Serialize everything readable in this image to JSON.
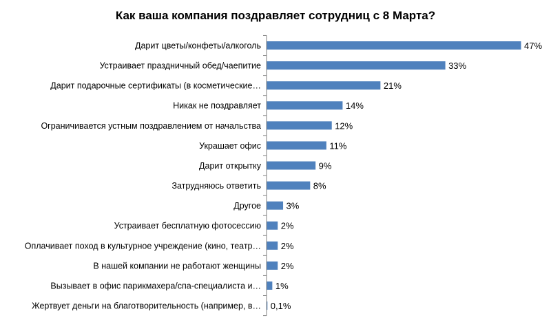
{
  "chart_data": {
    "type": "bar",
    "orientation": "horizontal",
    "title": "Как ваша компания поздравляет сотрудниц  с 8 Марта?",
    "xlabel": "",
    "ylabel": "",
    "xlim": [
      0,
      47
    ],
    "grid": false,
    "legend": "none",
    "colors": {
      "bar": "#4f81bd",
      "axis": "#7f7f7f",
      "text": "#000000"
    },
    "categories": [
      "Дарит цветы/конфеты/алкоголь",
      "Устраивает праздничный обед/чаепитие",
      "Дарит подарочные сертификаты (в косметические…",
      "Никак не поздравляет",
      "Ограничивается устным поздравлением от начальства",
      "Украшает офис",
      "Дарит открытку",
      "Затрудняюсь ответить",
      "Другое",
      "Устраивает бесплатную фотосессию",
      "Оплачивает  поход в культурное учреждение (кино, театр…",
      "В нашей компании не работают женщины",
      "Вызывает в офис парикмахера/спа-специалиста  и…",
      "Жертвует деньги на благотворительность (например, в…"
    ],
    "values": [
      47,
      33,
      21,
      14,
      12,
      11,
      9,
      8,
      3,
      2,
      2,
      2,
      1,
      0.1
    ],
    "value_labels": [
      "47%",
      "33%",
      "21%",
      "14%",
      "12%",
      "11%",
      "9%",
      "8%",
      "3%",
      "2%",
      "2%",
      "2%",
      "1%",
      "0,1%"
    ]
  }
}
